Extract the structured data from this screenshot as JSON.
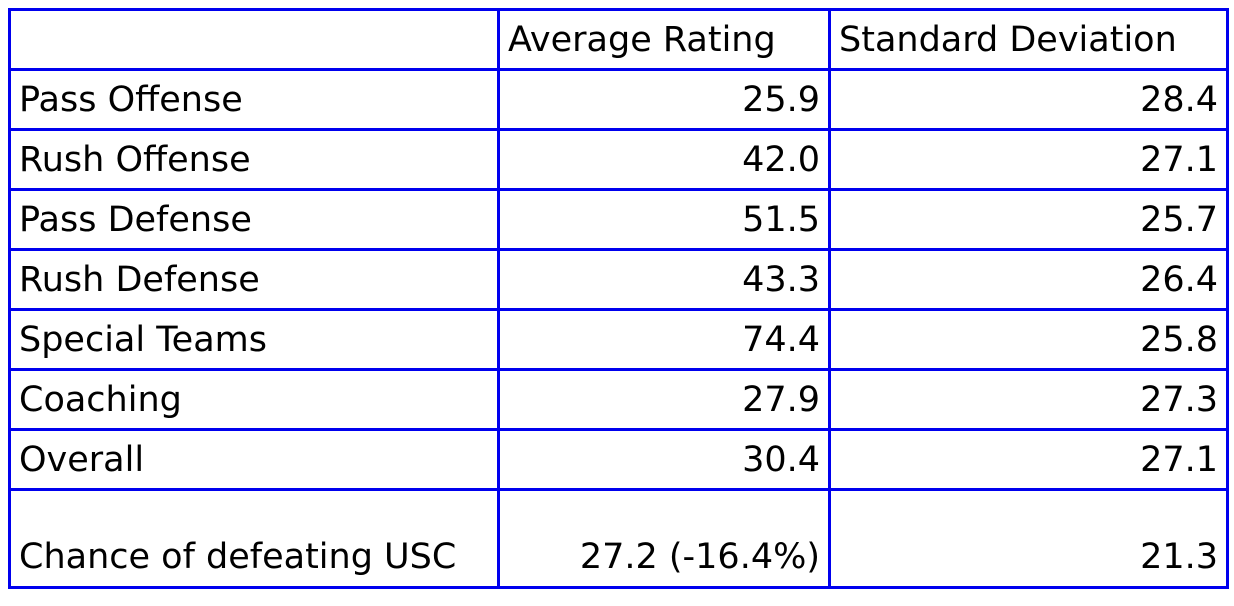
{
  "colors": {
    "border": "#0000EE",
    "text": "#000000",
    "background": "#ffffff"
  },
  "chart_data": {
    "type": "table",
    "columns": [
      "",
      "Average Rating",
      "Standard Deviation"
    ],
    "rows": [
      [
        "Pass Offense",
        "25.9",
        "28.4"
      ],
      [
        "Rush Offense",
        "42.0",
        "27.1"
      ],
      [
        "Pass Defense",
        "51.5",
        "25.7"
      ],
      [
        "Rush Defense",
        "43.3",
        "26.4"
      ],
      [
        "Special Teams",
        "74.4",
        "25.8"
      ],
      [
        "Coaching",
        "27.9",
        "27.3"
      ],
      [
        "Overall",
        "30.4",
        "27.1"
      ],
      [
        "Chance of defeating USC",
        "27.2 (-16.4%)",
        "21.3"
      ]
    ]
  },
  "table": {
    "header": {
      "col1": "",
      "col2": "Average Rating",
      "col3": "Standard Deviation"
    },
    "rows": [
      {
        "label": "Pass Offense",
        "average_rating": "25.9",
        "standard_deviation": "28.4"
      },
      {
        "label": "Rush Offense",
        "average_rating": "42.0",
        "standard_deviation": "27.1"
      },
      {
        "label": "Pass Defense",
        "average_rating": "51.5",
        "standard_deviation": "25.7"
      },
      {
        "label": "Rush Defense",
        "average_rating": "43.3",
        "standard_deviation": "26.4"
      },
      {
        "label": "Special Teams",
        "average_rating": "74.4",
        "standard_deviation": "25.8"
      },
      {
        "label": "Coaching",
        "average_rating": "27.9",
        "standard_deviation": "27.3"
      },
      {
        "label": "Overall",
        "average_rating": "30.4",
        "standard_deviation": "27.1"
      }
    ],
    "final_row": {
      "label": "Chance of defeating USC",
      "average_rating": "27.2 (-16.4%)",
      "standard_deviation": "21.3"
    }
  }
}
